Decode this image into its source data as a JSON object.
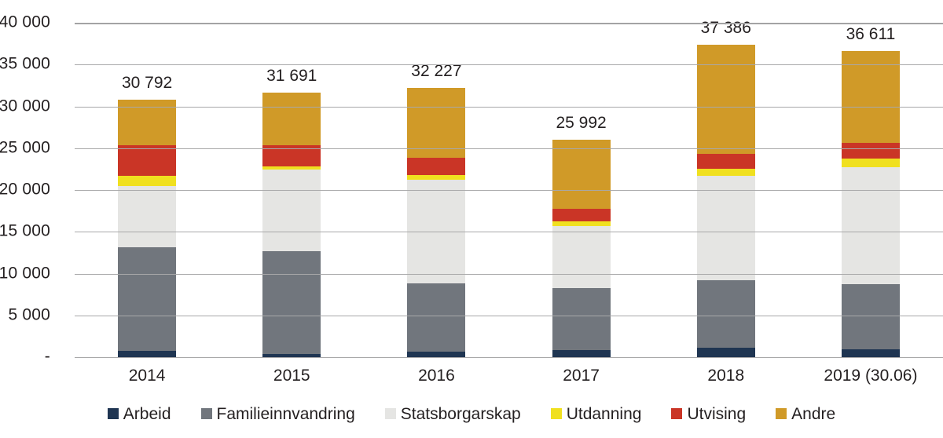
{
  "chart_data": {
    "type": "bar",
    "stacked": true,
    "title": "",
    "xlabel": "",
    "ylabel": "",
    "categories": [
      "2014",
      "2015",
      "2016",
      "2017",
      "2018",
      "2019 (30.06)"
    ],
    "series": [
      {
        "name": "Arbeid",
        "color": "#1f3552",
        "values": [
          750,
          400,
          650,
          850,
          1100,
          900
        ]
      },
      {
        "name": "Familieinnvandring",
        "color": "#71767d",
        "values": [
          12400,
          12250,
          8150,
          7450,
          8150,
          7800
        ]
      },
      {
        "name": "Statsborgarskap",
        "color": "#e5e5e3",
        "values": [
          7350,
          9800,
          12400,
          7400,
          12450,
          14000
        ]
      },
      {
        "name": "Utdanning",
        "color": "#f0e01f",
        "values": [
          1150,
          400,
          550,
          550,
          850,
          1050
        ]
      },
      {
        "name": "Utvising",
        "color": "#ca3526",
        "values": [
          3750,
          2500,
          2100,
          1500,
          1750,
          1900
        ]
      },
      {
        "name": "Andre",
        "color": "#d09a28",
        "values": [
          5392,
          6341,
          8377,
          8242,
          13086,
          10961
        ]
      }
    ],
    "totals": [
      30792,
      31691,
      32227,
      25992,
      37386,
      36611
    ],
    "total_labels": [
      "30 792",
      "31 691",
      "32 227",
      "25 992",
      "37 386",
      "36 611"
    ],
    "ylim": [
      0,
      40000
    ],
    "ytick_step": 5000,
    "ytick_labels_top_to_bottom": [
      "40 000",
      "35 000",
      "30 000",
      "25 000",
      "20 000",
      "15 000",
      "10 000",
      "5 000",
      "-"
    ],
    "grid": true,
    "legend_position": "bottom",
    "colors": {
      "gridline": "#a3a3a4",
      "text": "#231f20",
      "background": "#ffffff"
    }
  }
}
